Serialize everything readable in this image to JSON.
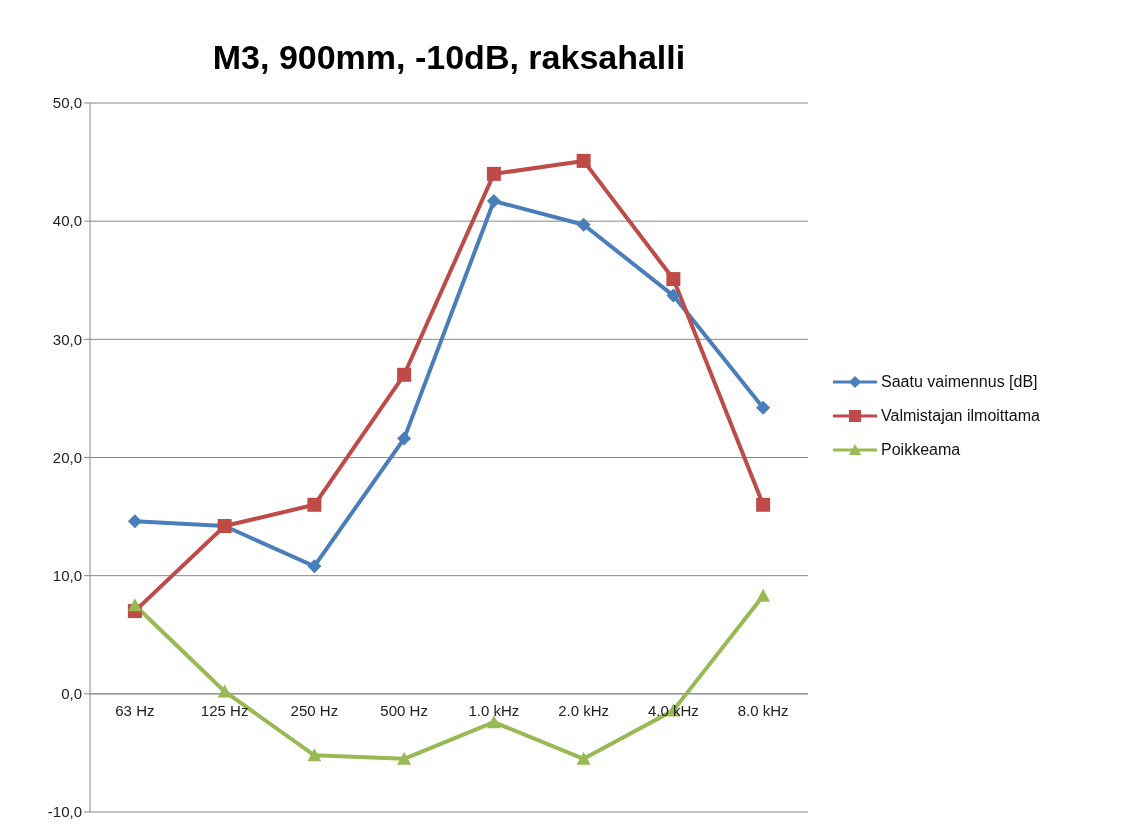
{
  "chart_data": {
    "type": "line",
    "title": "M3, 900mm, -10dB, raksahalli",
    "categories": [
      "63 Hz",
      "125 Hz",
      "250 Hz",
      "500 Hz",
      "1.0 kHz",
      "2.0 kHz",
      "4.0 kHz",
      "8.0 kHz"
    ],
    "series": [
      {
        "name": "Saatu vaimennus [dB]",
        "color": "#4a7ebb",
        "marker": "diamond",
        "values": [
          14.6,
          14.2,
          10.8,
          21.6,
          41.7,
          39.7,
          33.7,
          24.2
        ]
      },
      {
        "name": "Valmistajan ilmoittama",
        "color": "#be4b48",
        "marker": "square",
        "values": [
          7.0,
          14.2,
          16.0,
          27.0,
          44.0,
          45.1,
          35.1,
          16.0
        ]
      },
      {
        "name": "Poikkeama",
        "color": "#98b954",
        "marker": "triangle",
        "values": [
          7.5,
          0.2,
          -5.2,
          -5.5,
          -2.4,
          -5.5,
          -1.4,
          8.3
        ]
      }
    ],
    "ylim": [
      -10,
      50
    ],
    "yticks": [
      {
        "value": -10,
        "label": "-10,0"
      },
      {
        "value": 0,
        "label": "0,0"
      },
      {
        "value": 10,
        "label": "10,0"
      },
      {
        "value": 20,
        "label": "20,0"
      },
      {
        "value": 30,
        "label": "30,0"
      },
      {
        "value": 40,
        "label": "40,0"
      },
      {
        "value": 50,
        "label": "50,0"
      }
    ],
    "grid": "y",
    "legend": "right",
    "line_style": "solid"
  }
}
